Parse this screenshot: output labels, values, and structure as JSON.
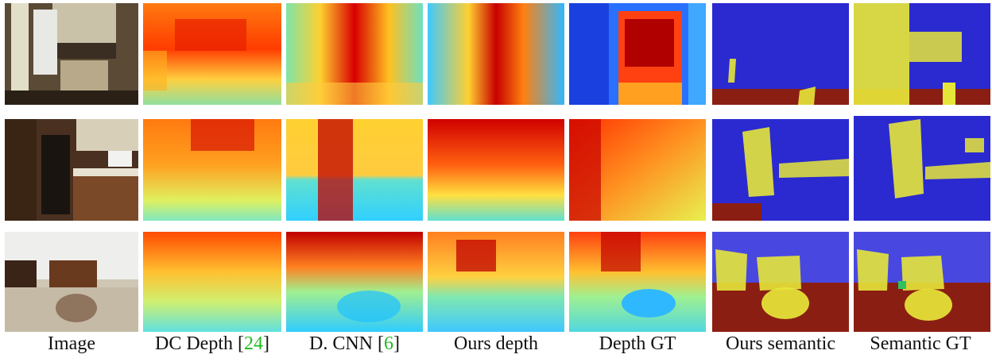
{
  "figure": {
    "columns": [
      {
        "id": "image",
        "label": "Image",
        "ref": ""
      },
      {
        "id": "dc-depth",
        "label": "DC Depth [",
        "ref": "24",
        "close": "]"
      },
      {
        "id": "d-cnn",
        "label": "D. CNN [",
        "ref": "6",
        "close": "]"
      },
      {
        "id": "ours-depth",
        "label": "Ours depth",
        "ref": ""
      },
      {
        "id": "depth-gt",
        "label": "Depth GT",
        "ref": ""
      },
      {
        "id": "ours-semantic",
        "label": "Ours semantic",
        "ref": ""
      },
      {
        "id": "semantic-gt",
        "label": "Semantic GT",
        "ref": ""
      }
    ],
    "rows": [
      "kitchen-1",
      "kitchen-2",
      "living-room"
    ],
    "colors": {
      "depth_far": "#c40000",
      "depth_mid": "#ff8c1a",
      "depth_near": "#33ccff",
      "semantic_wall": "#2a2ad0",
      "semantic_floor": "#8b1e12",
      "semantic_furniture": "#e6e63a"
    }
  }
}
